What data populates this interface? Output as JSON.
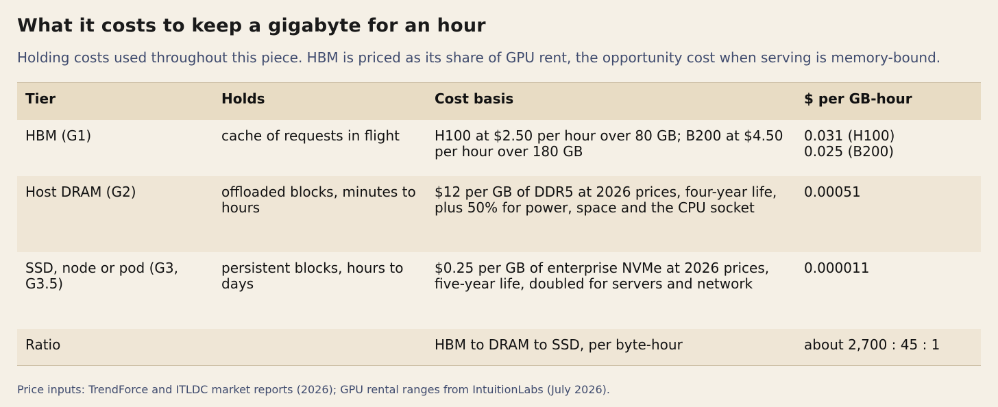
{
  "title": "What it costs to keep a gigabyte for an hour",
  "subtitle": "Holding costs used throughout this piece. HBM is priced as its share of GPU rent, the opportunity cost when serving is memory-bound.",
  "table": {
    "headers": [
      "Tier",
      "Holds",
      "Cost basis",
      "$ per GB-hour"
    ],
    "rows": [
      {
        "tier": "HBM (G1)",
        "holds": "cache of requests in flight",
        "cost_basis": "H100 at $2.50 per hour over 80 GB; B200 at $4.50 per hour over 180 GB",
        "price_lines": [
          "0.031 (H100)",
          "0.025 (B200)"
        ]
      },
      {
        "tier": "Host DRAM (G2)",
        "holds": "offloaded blocks, minutes to hours",
        "cost_basis": "$12 per GB of DDR5 at 2026 prices, four-year life, plus 50% for power, space and the CPU socket",
        "price_lines": [
          "0.00051"
        ]
      },
      {
        "tier": "SSD, node or pod (G3, G3.5)",
        "holds": "persistent blocks, hours to days",
        "cost_basis": "$0.25 per GB of enterprise NVMe at 2026 prices, five-year life, doubled for servers and network",
        "price_lines": [
          "0.000011"
        ]
      },
      {
        "tier": "Ratio",
        "holds": "",
        "cost_basis": "HBM to DRAM to SSD, per byte-hour",
        "price_lines": [
          "about 2,700 : 45 : 1"
        ]
      }
    ]
  },
  "footnote": "Price inputs: TrendForce and ITLDC market reports (2026); GPU rental ranges from IntuitionLabs (July 2026).",
  "colors": {
    "background": "#f5f0e6",
    "header_row": "#e8dcc4",
    "alt_row": "#efe6d6",
    "subtitle_text": "#3f4b6e"
  }
}
